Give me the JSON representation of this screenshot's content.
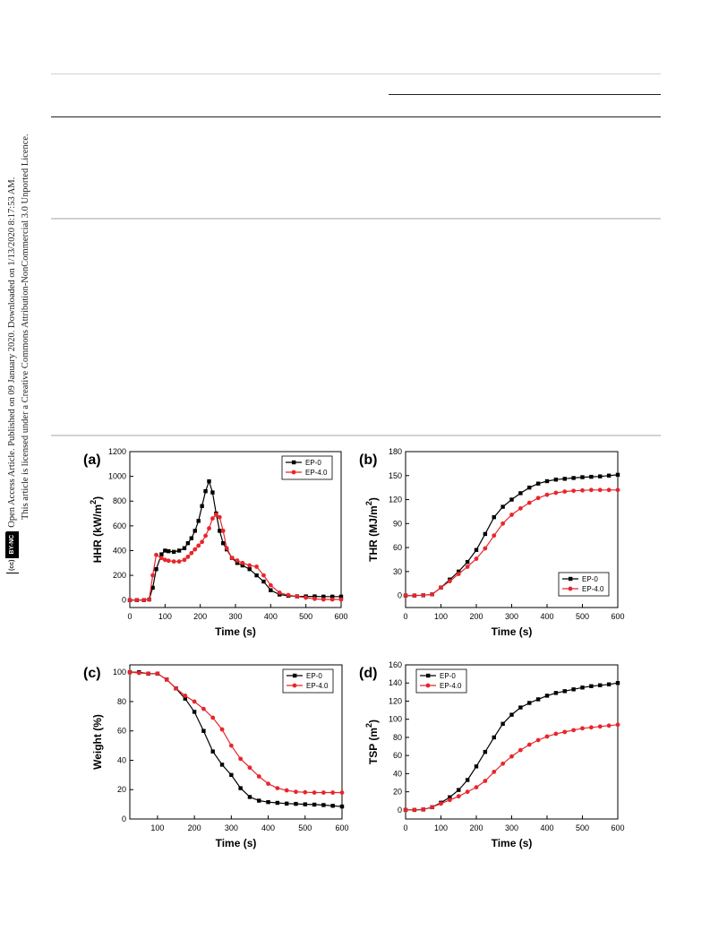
{
  "license_sidebar": {
    "badge_cc": "(cc)",
    "badge_by": "BY-NC",
    "line1": "Open Access Article. Published on 09 January 2020. Downloaded on 1/13/2020 8:17:53 AM.",
    "line2": "This article is licensed under a Creative Commons Attribution-NonCommercial 3.0 Unported Licence."
  },
  "colors": {
    "EP-0": "#000000",
    "EP-4.0": "#e8262b",
    "page_rule": "#cfd3cf"
  },
  "chart_data": [
    {
      "panel": "(a)",
      "type": "line",
      "xlabel": "Time (s)",
      "ylabel": "HHR (kW/m²)",
      "xlim": [
        0,
        600
      ],
      "ylim": [
        -60,
        1200
      ],
      "xticks": [
        0,
        100,
        200,
        300,
        400,
        500,
        600
      ],
      "yticks": [
        0,
        200,
        400,
        600,
        800,
        1000,
        1200
      ],
      "legend_position": "top-right",
      "series": [
        {
          "name": "EP-0",
          "marker": "square",
          "x": [
            0,
            20,
            40,
            55,
            65,
            75,
            90,
            100,
            110,
            125,
            140,
            155,
            165,
            175,
            185,
            195,
            205,
            215,
            225,
            235,
            245,
            255,
            265,
            275,
            290,
            305,
            320,
            340,
            360,
            380,
            400,
            425,
            450,
            475,
            500,
            525,
            550,
            575,
            600
          ],
          "y": [
            0,
            0,
            0,
            5,
            100,
            250,
            370,
            400,
            395,
            390,
            400,
            420,
            460,
            500,
            560,
            640,
            760,
            880,
            960,
            870,
            700,
            560,
            460,
            410,
            340,
            300,
            280,
            250,
            200,
            150,
            80,
            45,
            35,
            30,
            30,
            30,
            28,
            28,
            28
          ]
        },
        {
          "name": "EP-4.0",
          "marker": "circle",
          "x": [
            0,
            20,
            40,
            55,
            65,
            75,
            90,
            100,
            110,
            125,
            140,
            155,
            165,
            175,
            185,
            195,
            205,
            215,
            225,
            235,
            245,
            255,
            265,
            275,
            290,
            305,
            320,
            340,
            360,
            380,
            400,
            425,
            450,
            475,
            500,
            525,
            550,
            575,
            600
          ],
          "y": [
            0,
            0,
            0,
            5,
            200,
            365,
            340,
            325,
            318,
            312,
            312,
            325,
            350,
            380,
            410,
            440,
            470,
            520,
            580,
            660,
            690,
            670,
            560,
            420,
            340,
            320,
            300,
            280,
            270,
            200,
            120,
            60,
            40,
            30,
            20,
            10,
            5,
            5,
            5
          ]
        }
      ]
    },
    {
      "panel": "(b)",
      "type": "line",
      "xlabel": "Time (s)",
      "ylabel": "THR (MJ/m²)",
      "xlim": [
        0,
        600
      ],
      "ylim": [
        -15,
        180
      ],
      "xticks": [
        0,
        100,
        200,
        300,
        400,
        500,
        600
      ],
      "yticks": [
        0,
        30,
        60,
        90,
        120,
        150,
        180
      ],
      "legend_position": "bottom-right",
      "series": [
        {
          "name": "EP-0",
          "marker": "square",
          "x": [
            0,
            25,
            50,
            75,
            100,
            125,
            150,
            175,
            200,
            225,
            250,
            275,
            300,
            325,
            350,
            375,
            400,
            425,
            450,
            475,
            500,
            525,
            550,
            575,
            600
          ],
          "y": [
            0,
            0,
            0.3,
            1.5,
            10,
            20,
            30,
            42,
            57,
            77,
            98,
            111,
            120,
            128,
            135,
            140,
            143,
            145,
            146,
            147,
            148,
            148.5,
            149,
            150,
            151
          ]
        },
        {
          "name": "EP-4.0",
          "marker": "circle",
          "x": [
            0,
            25,
            50,
            75,
            100,
            125,
            150,
            175,
            200,
            225,
            250,
            275,
            300,
            325,
            350,
            375,
            400,
            425,
            450,
            475,
            500,
            525,
            550,
            575,
            600
          ],
          "y": [
            0,
            0,
            0.3,
            1.5,
            10,
            18,
            27,
            36,
            46,
            59,
            75,
            90,
            101,
            109,
            116,
            122,
            126,
            128.5,
            130,
            131,
            131.5,
            132,
            132,
            132,
            132
          ]
        }
      ]
    },
    {
      "panel": "(c)",
      "type": "line",
      "xlabel": "Time (s)",
      "ylabel": "Weight (%)",
      "xlim": [
        25,
        600
      ],
      "ylim": [
        0,
        105
      ],
      "xticks": [
        100,
        200,
        300,
        400,
        500,
        600
      ],
      "yticks": [
        0,
        20,
        40,
        60,
        80,
        100
      ],
      "legend_position": "top-right",
      "series": [
        {
          "name": "EP-0",
          "marker": "square",
          "x": [
            25,
            50,
            75,
            100,
            125,
            150,
            175,
            200,
            225,
            250,
            275,
            300,
            325,
            350,
            375,
            400,
            425,
            450,
            475,
            500,
            525,
            550,
            575,
            600
          ],
          "y": [
            100,
            100,
            99,
            99,
            95,
            89,
            82,
            73,
            60,
            46,
            37,
            30,
            21,
            15,
            12.5,
            11.5,
            11,
            10.5,
            10.3,
            10,
            9.8,
            9.5,
            9,
            8.5
          ]
        },
        {
          "name": "EP-4.0",
          "marker": "circle",
          "x": [
            25,
            50,
            75,
            100,
            125,
            150,
            175,
            200,
            225,
            250,
            275,
            300,
            325,
            350,
            375,
            400,
            425,
            450,
            475,
            500,
            525,
            550,
            575,
            600
          ],
          "y": [
            100,
            99.5,
            99,
            99,
            95,
            89,
            84,
            80,
            75,
            69,
            61,
            50,
            41,
            35,
            29,
            24,
            21,
            19.5,
            18.5,
            18.2,
            18,
            18,
            18,
            18
          ]
        }
      ]
    },
    {
      "panel": "(d)",
      "type": "line",
      "xlabel": "Time (s)",
      "ylabel": "TSP (m²)",
      "xlim": [
        0,
        600
      ],
      "ylim": [
        -10,
        160
      ],
      "xticks": [
        0,
        100,
        200,
        300,
        400,
        500,
        600
      ],
      "yticks": [
        0,
        20,
        40,
        60,
        80,
        100,
        120,
        140,
        160
      ],
      "legend_position": "top-left",
      "series": [
        {
          "name": "EP-0",
          "marker": "square",
          "x": [
            0,
            25,
            50,
            75,
            100,
            125,
            150,
            175,
            200,
            225,
            250,
            275,
            300,
            325,
            350,
            375,
            400,
            425,
            450,
            475,
            500,
            525,
            550,
            575,
            600
          ],
          "y": [
            0,
            0,
            0.5,
            3,
            8,
            14,
            22,
            33,
            48,
            64,
            80,
            95,
            105,
            113,
            118,
            122,
            126,
            129,
            131,
            133,
            135,
            136.5,
            137.5,
            138.5,
            140
          ]
        },
        {
          "name": "EP-4.0",
          "marker": "circle",
          "x": [
            0,
            25,
            50,
            75,
            100,
            125,
            150,
            175,
            200,
            225,
            250,
            275,
            300,
            325,
            350,
            375,
            400,
            425,
            450,
            475,
            500,
            525,
            550,
            575,
            600
          ],
          "y": [
            0,
            0,
            0.5,
            3,
            7,
            11,
            15,
            20,
            25,
            32,
            42,
            51,
            59,
            66,
            72,
            77,
            81,
            84,
            86,
            88,
            90,
            91,
            92,
            93,
            94
          ]
        }
      ]
    }
  ]
}
